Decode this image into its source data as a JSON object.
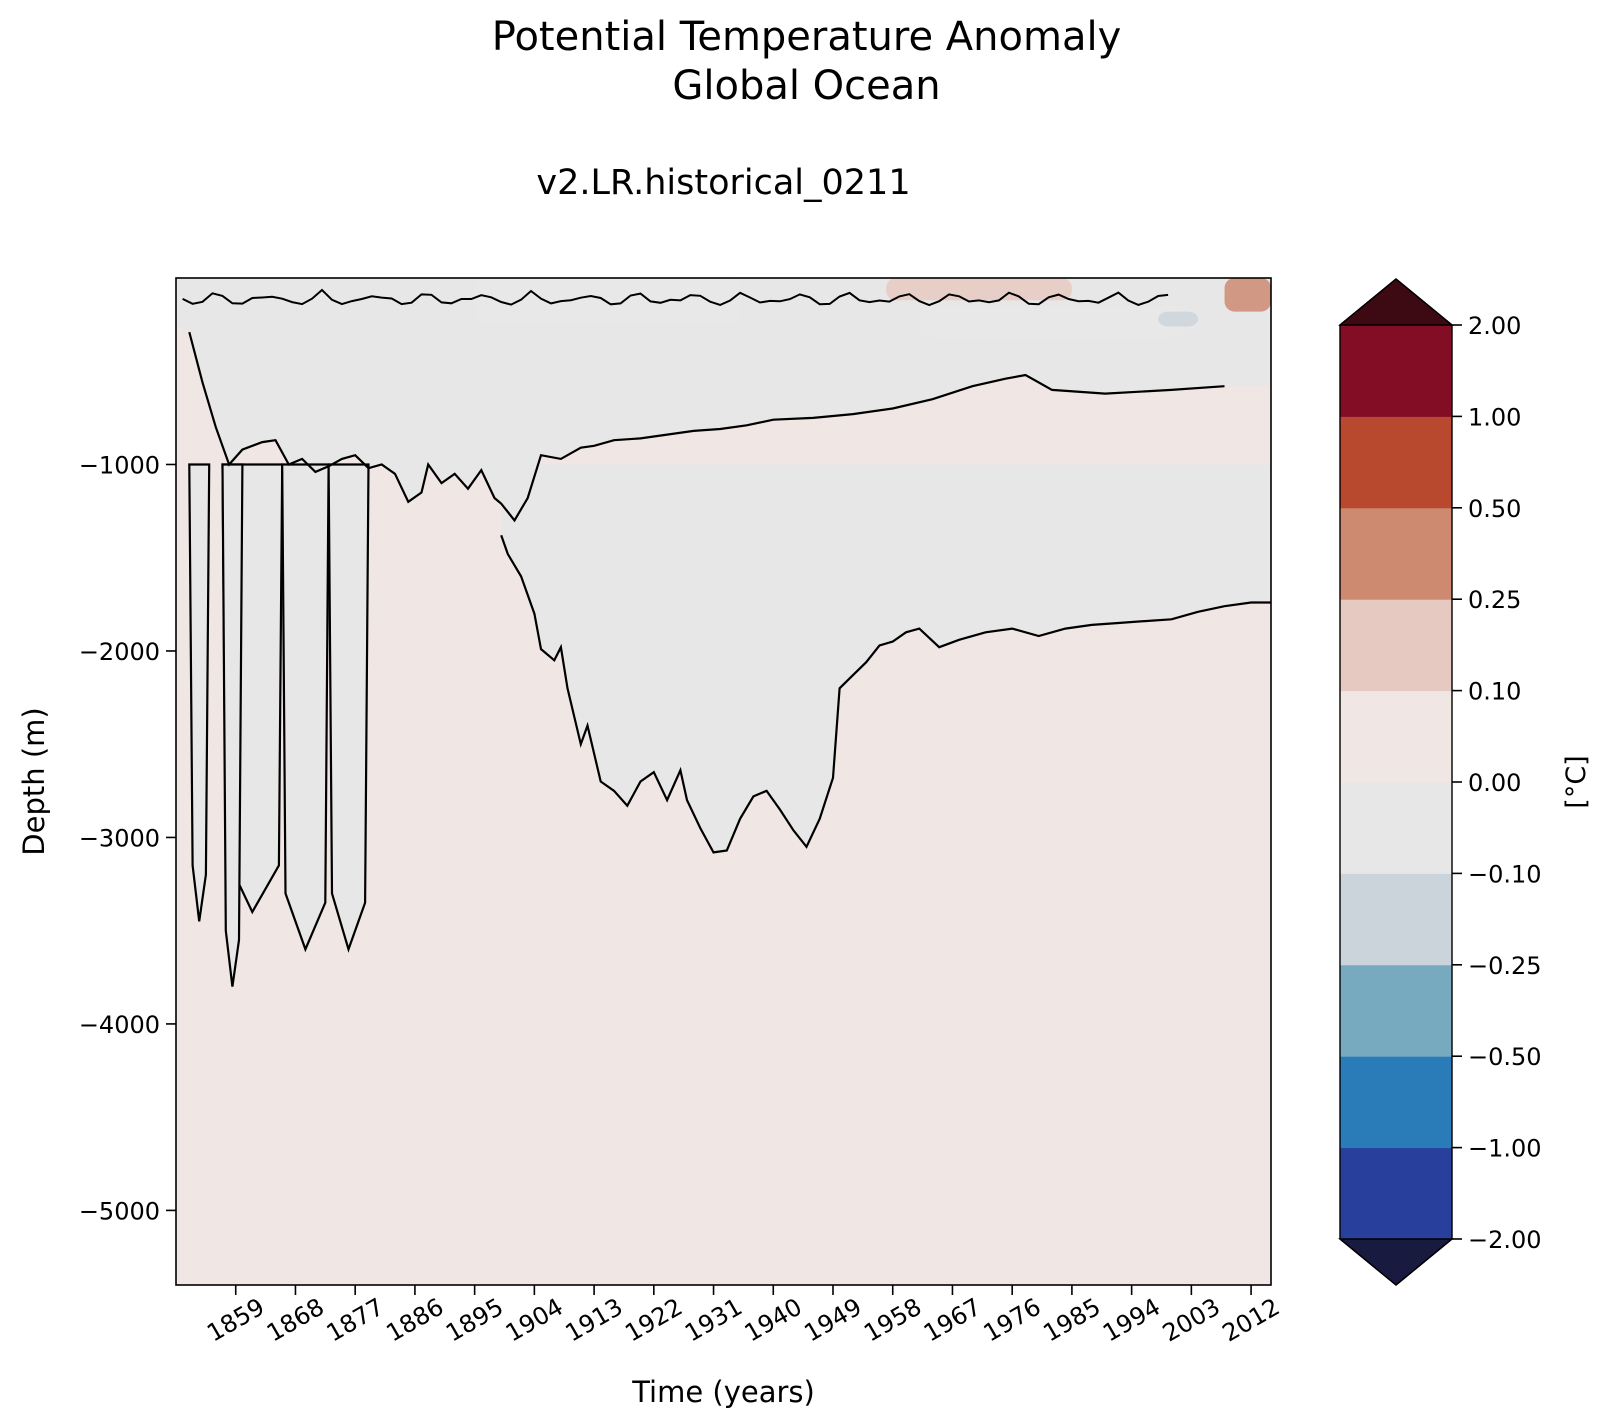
{
  "title": [
    "Potential Temperature Anomaly",
    "Global Ocean"
  ],
  "subtitle": "v2.LR.historical_0211",
  "chart_data": {
    "type": "heatmap",
    "title": "Potential Temperature Anomaly\nGlobal Ocean",
    "subtitle": "v2.LR.historical_0211",
    "xlabel": "Time (years)",
    "ylabel": "Depth (m)",
    "xlim": [
      1850,
      2015
    ],
    "ylim": [
      -5400,
      0
    ],
    "xticks": [
      "1859",
      "1868",
      "1877",
      "1886",
      "1895",
      "1904",
      "1913",
      "1922",
      "1931",
      "1940",
      "1949",
      "1958",
      "1967",
      "1976",
      "1985",
      "1994",
      "2003",
      "2012"
    ],
    "yticks": [
      "−1000",
      "−2000",
      "−3000",
      "−4000",
      "−5000"
    ],
    "ytick_values": [
      -1000,
      -2000,
      -3000,
      -4000,
      -5000
    ],
    "colorbar": {
      "label": "[°C]",
      "levels": [
        "−2.00",
        "−1.00",
        "−0.50",
        "−0.25",
        "−0.10",
        "0.00",
        "0.10",
        "0.25",
        "0.50",
        "1.00",
        "2.00"
      ],
      "colors": [
        "#283f9c",
        "#2a7cb9",
        "#77a9bf",
        "#cbd4da",
        "#e8e7e8",
        "#f0e6e4",
        "#e6cac2",
        "#cd8a71",
        "#b8492e",
        "#840d26"
      ],
      "under_color": "#181a40",
      "over_color": "#3d0a14"
    },
    "background_color": "#f0e6e4",
    "negative_color": "#e8e7e8",
    "main_negative_region": {
      "upper_boundary": [
        [
          1850,
          -260
        ],
        [
          1852,
          -290
        ],
        [
          1854,
          -560
        ],
        [
          1856,
          -800
        ],
        [
          1858,
          -1000
        ],
        [
          1860,
          -920
        ],
        [
          1863,
          -880
        ],
        [
          1865,
          -870
        ],
        [
          1867,
          -1000
        ],
        [
          1869,
          -970
        ],
        [
          1871,
          -1040
        ],
        [
          1873,
          -1010
        ],
        [
          1875,
          -970
        ],
        [
          1877,
          -950
        ],
        [
          1879,
          -1020
        ],
        [
          1881,
          -1000
        ],
        [
          1883,
          -1050
        ],
        [
          1885,
          -1200
        ],
        [
          1887,
          -1150
        ],
        [
          1888,
          -1000
        ],
        [
          1890,
          -1100
        ],
        [
          1892,
          -1050
        ],
        [
          1894,
          -1130
        ],
        [
          1896,
          -1030
        ],
        [
          1898,
          -1180
        ],
        [
          1899,
          -1210
        ],
        [
          1901,
          -1300
        ],
        [
          1903,
          -1180
        ],
        [
          1905,
          -950
        ],
        [
          1908,
          -970
        ],
        [
          1911,
          -910
        ],
        [
          1913,
          -900
        ],
        [
          1916,
          -870
        ],
        [
          1920,
          -860
        ],
        [
          1924,
          -840
        ],
        [
          1928,
          -820
        ],
        [
          1932,
          -810
        ],
        [
          1936,
          -790
        ],
        [
          1940,
          -760
        ],
        [
          1946,
          -750
        ],
        [
          1952,
          -730
        ],
        [
          1958,
          -700
        ],
        [
          1964,
          -650
        ],
        [
          1970,
          -580
        ],
        [
          1975,
          -540
        ],
        [
          1978,
          -520
        ],
        [
          1982,
          -600
        ],
        [
          1990,
          -620
        ],
        [
          2000,
          -600
        ],
        [
          2008,
          -580
        ],
        [
          2015,
          -580
        ],
        [
          2015,
          0
        ],
        [
          1850,
          0
        ]
      ],
      "lower_boundary": [
        [
          1899,
          -1380
        ],
        [
          1900,
          -1480
        ],
        [
          1902,
          -1600
        ],
        [
          1904,
          -1800
        ],
        [
          1905,
          -1990
        ],
        [
          1907,
          -2050
        ],
        [
          1908,
          -1980
        ],
        [
          1909,
          -2200
        ],
        [
          1911,
          -2500
        ],
        [
          1912,
          -2400
        ],
        [
          1914,
          -2700
        ],
        [
          1916,
          -2750
        ],
        [
          1918,
          -2830
        ],
        [
          1920,
          -2700
        ],
        [
          1922,
          -2650
        ],
        [
          1924,
          -2800
        ],
        [
          1926,
          -2640
        ],
        [
          1927,
          -2800
        ],
        [
          1929,
          -2950
        ],
        [
          1931,
          -3080
        ],
        [
          1933,
          -3070
        ],
        [
          1935,
          -2900
        ],
        [
          1937,
          -2780
        ],
        [
          1939,
          -2750
        ],
        [
          1941,
          -2850
        ],
        [
          1943,
          -2960
        ],
        [
          1945,
          -3050
        ],
        [
          1947,
          -2900
        ],
        [
          1949,
          -2680
        ],
        [
          1950,
          -2200
        ],
        [
          1952,
          -2130
        ],
        [
          1954,
          -2060
        ],
        [
          1956,
          -1970
        ],
        [
          1958,
          -1950
        ],
        [
          1960,
          -1900
        ],
        [
          1962,
          -1880
        ],
        [
          1965,
          -1980
        ],
        [
          1968,
          -1940
        ],
        [
          1972,
          -1900
        ],
        [
          1976,
          -1880
        ],
        [
          1980,
          -1920
        ],
        [
          1984,
          -1880
        ],
        [
          1988,
          -1860
        ],
        [
          1992,
          -1850
        ],
        [
          1996,
          -1840
        ],
        [
          2000,
          -1830
        ],
        [
          2004,
          -1790
        ],
        [
          2008,
          -1760
        ],
        [
          2012,
          -1740
        ],
        [
          2015,
          -1740
        ]
      ]
    },
    "deep_negative_columns": [
      {
        "x_range": [
          1857,
          1866
        ],
        "bottom": -3400
      },
      {
        "x_range": [
          1866,
          1873
        ],
        "bottom": -3600
      },
      {
        "x_range": [
          1873,
          1879
        ],
        "bottom": -3600
      },
      {
        "x_range": [
          1852,
          1855
        ],
        "bottom": -3450
      },
      {
        "x_range": [
          1857,
          1860
        ],
        "bottom": -3800
      }
    ],
    "surface_patches": [
      {
        "x_range": [
          1895,
          1935
        ],
        "depth_range": [
          0,
          -250
        ],
        "level": "−0.10"
      },
      {
        "x_range": [
          1962,
          2002
        ],
        "depth_range": [
          -150,
          -320
        ],
        "level": "−0.10"
      },
      {
        "x_range": [
          1998,
          2004
        ],
        "depth_range": [
          -180,
          -260
        ],
        "level": "−0.25"
      },
      {
        "x_range": [
          2008,
          2015
        ],
        "depth_range": [
          0,
          -180
        ],
        "level": "0.25"
      },
      {
        "x_range": [
          1957,
          1985
        ],
        "depth_range": [
          0,
          -120
        ],
        "level": "0.10"
      }
    ]
  }
}
